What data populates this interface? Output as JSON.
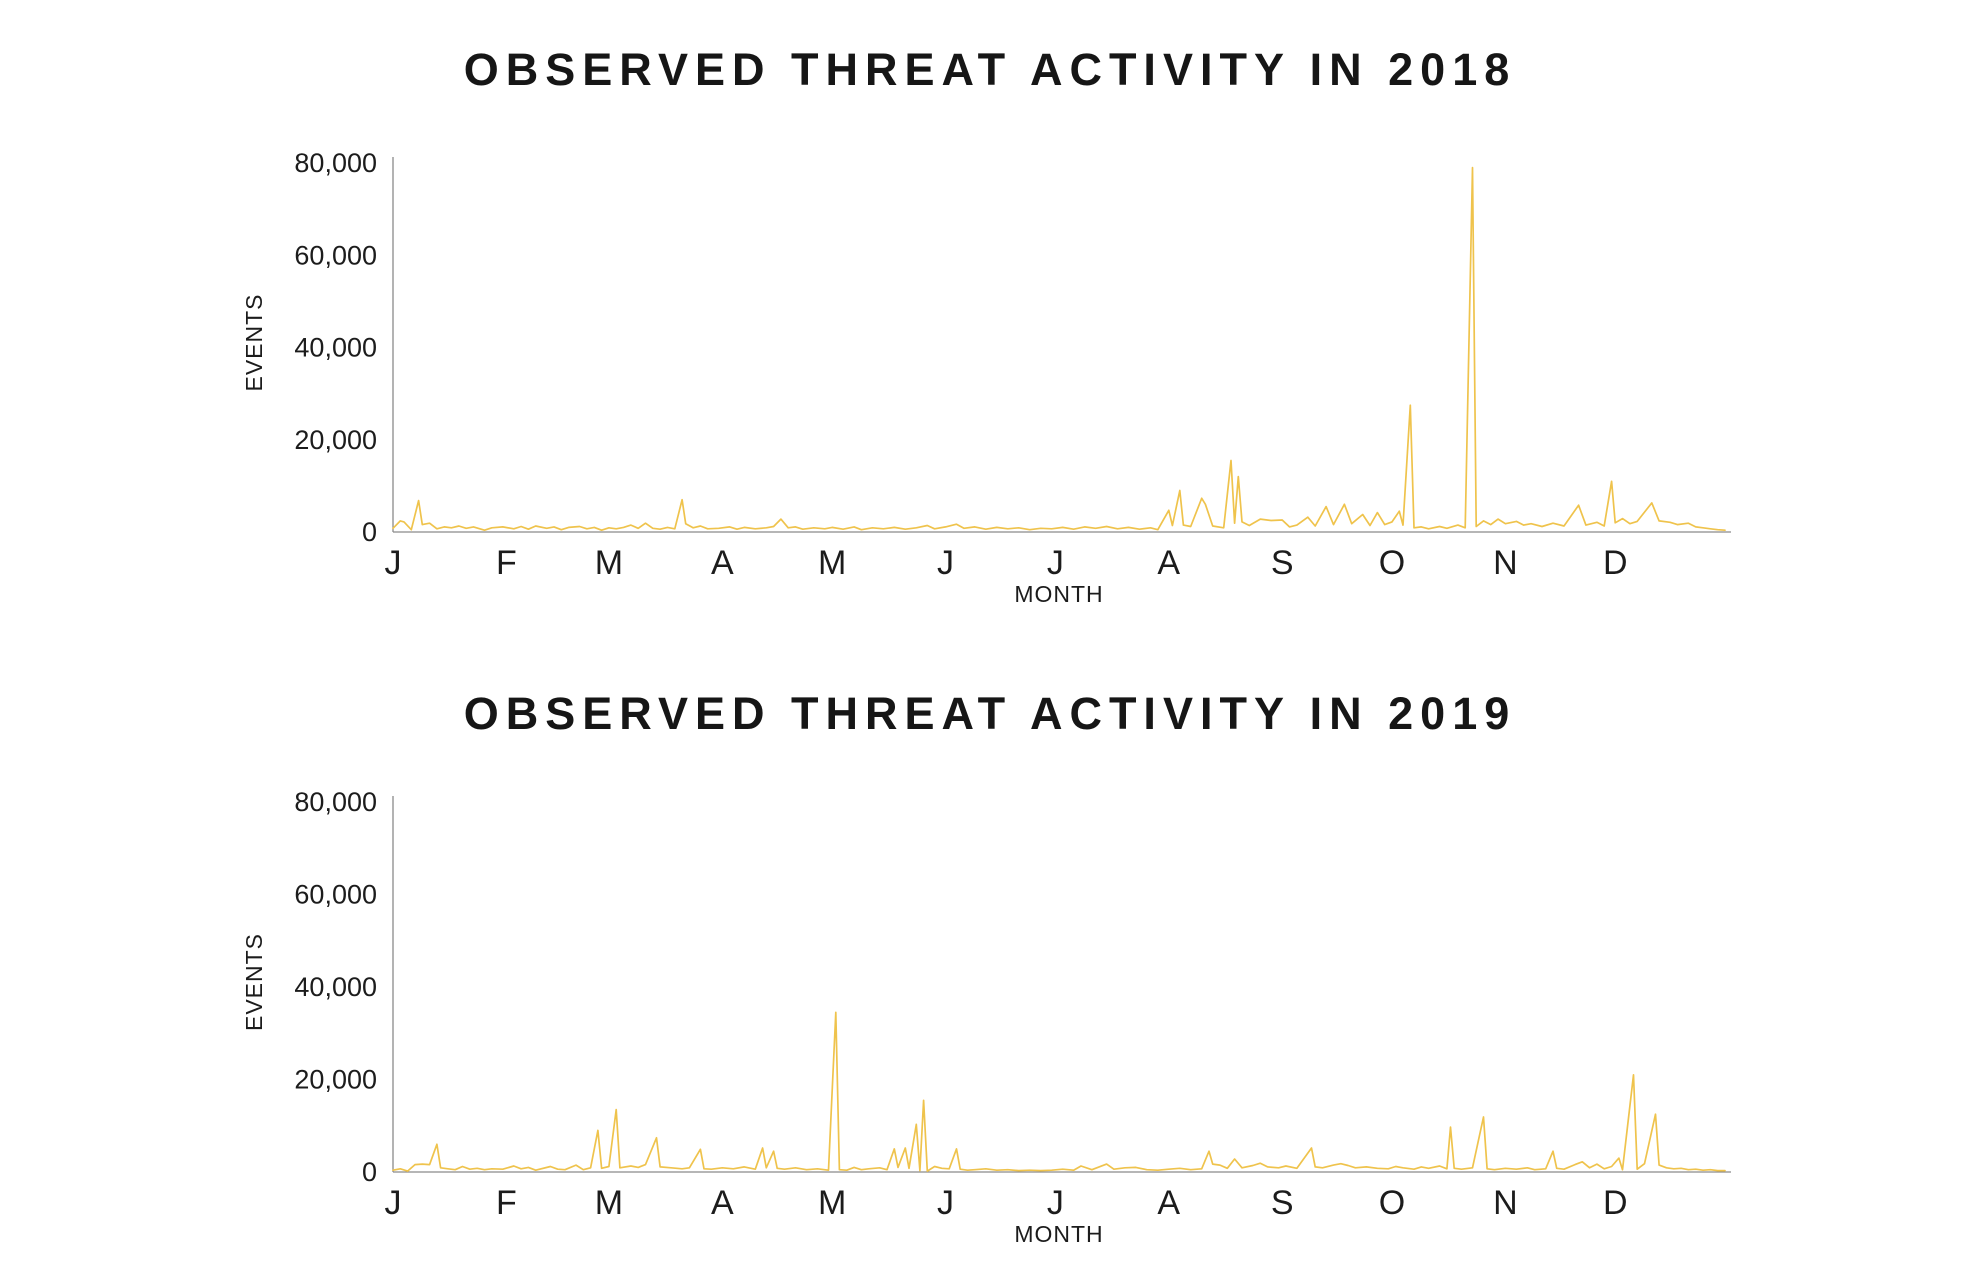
{
  "page": {
    "background": "#ffffff"
  },
  "style": {
    "line_color": "#EFC34C",
    "axis_color": "#8a8a8a",
    "text_color": "#1c1c1c"
  },
  "chart_data": [
    {
      "type": "line",
      "title": "OBSERVED THREAT ACTIVITY IN 2018",
      "xlabel": "MONTH",
      "ylabel": "EVENTS",
      "ylim": [
        0,
        80000
      ],
      "grid": false,
      "legend": "none",
      "y_tick_labels": [
        "0",
        "20,000",
        "40,000",
        "60,000",
        "80,000"
      ],
      "y_tick_values": [
        0,
        20000,
        40000,
        60000,
        80000
      ],
      "x_tick_labels": [
        "J",
        "F",
        "M",
        "A",
        "M",
        "J",
        "J",
        "A",
        "S",
        "O",
        "N",
        "D"
      ],
      "month_start_days": [
        0,
        31,
        59,
        90,
        120,
        151,
        181,
        212,
        243,
        273,
        304,
        334
      ],
      "x_unit": "day_of_year",
      "points": [
        [
          1,
          800
        ],
        [
          3,
          2400
        ],
        [
          4,
          2200
        ],
        [
          6,
          500
        ],
        [
          8,
          6800
        ],
        [
          9,
          1600
        ],
        [
          11,
          1900
        ],
        [
          13,
          700
        ],
        [
          15,
          1100
        ],
        [
          17,
          900
        ],
        [
          19,
          1300
        ],
        [
          21,
          800
        ],
        [
          23,
          1100
        ],
        [
          26,
          400
        ],
        [
          28,
          900
        ],
        [
          31,
          1100
        ],
        [
          34,
          700
        ],
        [
          36,
          1200
        ],
        [
          38,
          600
        ],
        [
          40,
          1300
        ],
        [
          43,
          800
        ],
        [
          45,
          1100
        ],
        [
          47,
          500
        ],
        [
          49,
          1000
        ],
        [
          52,
          1200
        ],
        [
          54,
          700
        ],
        [
          56,
          1000
        ],
        [
          58,
          400
        ],
        [
          60,
          900
        ],
        [
          62,
          700
        ],
        [
          64,
          1000
        ],
        [
          66,
          1500
        ],
        [
          68,
          800
        ],
        [
          70,
          1900
        ],
        [
          72,
          800
        ],
        [
          74,
          600
        ],
        [
          76,
          1000
        ],
        [
          78,
          700
        ],
        [
          80,
          7000
        ],
        [
          81,
          1800
        ],
        [
          83,
          900
        ],
        [
          85,
          1300
        ],
        [
          87,
          700
        ],
        [
          90,
          800
        ],
        [
          93,
          1100
        ],
        [
          95,
          600
        ],
        [
          97,
          1000
        ],
        [
          100,
          700
        ],
        [
          103,
          900
        ],
        [
          105,
          1200
        ],
        [
          107,
          2800
        ],
        [
          109,
          900
        ],
        [
          111,
          1100
        ],
        [
          113,
          600
        ],
        [
          116,
          900
        ],
        [
          119,
          700
        ],
        [
          121,
          1000
        ],
        [
          124,
          600
        ],
        [
          127,
          1100
        ],
        [
          129,
          500
        ],
        [
          132,
          900
        ],
        [
          135,
          700
        ],
        [
          138,
          1000
        ],
        [
          141,
          600
        ],
        [
          144,
          900
        ],
        [
          147,
          1400
        ],
        [
          149,
          700
        ],
        [
          152,
          1100
        ],
        [
          155,
          1700
        ],
        [
          157,
          800
        ],
        [
          160,
          1100
        ],
        [
          163,
          600
        ],
        [
          166,
          1000
        ],
        [
          169,
          700
        ],
        [
          172,
          900
        ],
        [
          175,
          500
        ],
        [
          178,
          800
        ],
        [
          181,
          700
        ],
        [
          184,
          1000
        ],
        [
          187,
          600
        ],
        [
          190,
          1100
        ],
        [
          193,
          800
        ],
        [
          196,
          1200
        ],
        [
          199,
          700
        ],
        [
          202,
          1000
        ],
        [
          205,
          600
        ],
        [
          208,
          900
        ],
        [
          210,
          500
        ],
        [
          213,
          4700
        ],
        [
          214,
          1400
        ],
        [
          216,
          9000
        ],
        [
          217,
          1500
        ],
        [
          219,
          1200
        ],
        [
          222,
          7300
        ],
        [
          223,
          6000
        ],
        [
          225,
          1300
        ],
        [
          228,
          900
        ],
        [
          230,
          15500
        ],
        [
          231,
          1900
        ],
        [
          232,
          12000
        ],
        [
          233,
          2200
        ],
        [
          235,
          1400
        ],
        [
          238,
          2800
        ],
        [
          241,
          2500
        ],
        [
          244,
          2600
        ],
        [
          246,
          1100
        ],
        [
          248,
          1500
        ],
        [
          251,
          3200
        ],
        [
          253,
          1300
        ],
        [
          256,
          5500
        ],
        [
          258,
          1600
        ],
        [
          261,
          6000
        ],
        [
          263,
          1800
        ],
        [
          266,
          3800
        ],
        [
          268,
          1400
        ],
        [
          270,
          4200
        ],
        [
          272,
          1600
        ],
        [
          274,
          2200
        ],
        [
          276,
          4500
        ],
        [
          277,
          1500
        ],
        [
          279,
          27500
        ],
        [
          280,
          900
        ],
        [
          282,
          1100
        ],
        [
          284,
          700
        ],
        [
          287,
          1200
        ],
        [
          289,
          800
        ],
        [
          292,
          1500
        ],
        [
          294,
          900
        ],
        [
          296,
          79000
        ],
        [
          297,
          1200
        ],
        [
          299,
          2400
        ],
        [
          301,
          1600
        ],
        [
          303,
          2800
        ],
        [
          305,
          1800
        ],
        [
          308,
          2300
        ],
        [
          310,
          1500
        ],
        [
          312,
          1800
        ],
        [
          315,
          1200
        ],
        [
          318,
          1900
        ],
        [
          321,
          1300
        ],
        [
          325,
          5800
        ],
        [
          327,
          1500
        ],
        [
          330,
          2100
        ],
        [
          332,
          1300
        ],
        [
          334,
          11000
        ],
        [
          335,
          2000
        ],
        [
          337,
          2900
        ],
        [
          339,
          1800
        ],
        [
          341,
          2300
        ],
        [
          345,
          6300
        ],
        [
          347,
          2400
        ],
        [
          350,
          2100
        ],
        [
          352,
          1600
        ],
        [
          355,
          1900
        ],
        [
          357,
          1100
        ],
        [
          359,
          900
        ],
        [
          361,
          700
        ],
        [
          363,
          500
        ],
        [
          365,
          400
        ]
      ]
    },
    {
      "type": "line",
      "title": "OBSERVED THREAT ACTIVITY IN 2019",
      "xlabel": "MONTH",
      "ylabel": "EVENTS",
      "ylim": [
        0,
        80000
      ],
      "grid": false,
      "legend": "none",
      "y_tick_labels": [
        "0",
        "20,000",
        "40,000",
        "60,000",
        "80,000"
      ],
      "y_tick_values": [
        0,
        20000,
        40000,
        60000,
        80000
      ],
      "x_tick_labels": [
        "J",
        "F",
        "M",
        "A",
        "M",
        "J",
        "J",
        "A",
        "S",
        "O",
        "N",
        "D"
      ],
      "month_start_days": [
        0,
        31,
        59,
        90,
        120,
        151,
        181,
        212,
        243,
        273,
        304,
        334
      ],
      "x_unit": "day_of_year",
      "points": [
        [
          1,
          400
        ],
        [
          3,
          700
        ],
        [
          5,
          200
        ],
        [
          7,
          1600
        ],
        [
          9,
          1700
        ],
        [
          11,
          1600
        ],
        [
          13,
          6000
        ],
        [
          14,
          900
        ],
        [
          16,
          700
        ],
        [
          18,
          500
        ],
        [
          20,
          1200
        ],
        [
          22,
          600
        ],
        [
          24,
          800
        ],
        [
          26,
          500
        ],
        [
          28,
          700
        ],
        [
          31,
          600
        ],
        [
          34,
          1300
        ],
        [
          36,
          700
        ],
        [
          38,
          1000
        ],
        [
          40,
          400
        ],
        [
          44,
          1200
        ],
        [
          46,
          600
        ],
        [
          48,
          500
        ],
        [
          51,
          1500
        ],
        [
          53,
          500
        ],
        [
          55,
          900
        ],
        [
          57,
          9000
        ],
        [
          58,
          800
        ],
        [
          60,
          1200
        ],
        [
          62,
          13500
        ],
        [
          63,
          900
        ],
        [
          66,
          1300
        ],
        [
          68,
          1000
        ],
        [
          70,
          1600
        ],
        [
          73,
          7400
        ],
        [
          74,
          1100
        ],
        [
          77,
          900
        ],
        [
          80,
          700
        ],
        [
          82,
          900
        ],
        [
          85,
          4900
        ],
        [
          86,
          700
        ],
        [
          88,
          600
        ],
        [
          91,
          900
        ],
        [
          94,
          700
        ],
        [
          97,
          1100
        ],
        [
          100,
          600
        ],
        [
          102,
          5200
        ],
        [
          103,
          900
        ],
        [
          105,
          4500
        ],
        [
          106,
          800
        ],
        [
          108,
          600
        ],
        [
          111,
          900
        ],
        [
          114,
          500
        ],
        [
          117,
          700
        ],
        [
          120,
          400
        ],
        [
          122,
          34500
        ],
        [
          123,
          500
        ],
        [
          125,
          400
        ],
        [
          127,
          1000
        ],
        [
          129,
          500
        ],
        [
          131,
          700
        ],
        [
          134,
          900
        ],
        [
          136,
          500
        ],
        [
          138,
          5000
        ],
        [
          139,
          1000
        ],
        [
          141,
          5200
        ],
        [
          142,
          800
        ],
        [
          144,
          10300
        ],
        [
          145,
          300
        ],
        [
          146,
          15500
        ],
        [
          147,
          200
        ],
        [
          149,
          1200
        ],
        [
          151,
          800
        ],
        [
          153,
          700
        ],
        [
          155,
          5000
        ],
        [
          156,
          600
        ],
        [
          158,
          400
        ],
        [
          160,
          500
        ],
        [
          163,
          700
        ],
        [
          166,
          400
        ],
        [
          169,
          500
        ],
        [
          172,
          300
        ],
        [
          175,
          400
        ],
        [
          178,
          300
        ],
        [
          181,
          400
        ],
        [
          184,
          600
        ],
        [
          187,
          400
        ],
        [
          189,
          1300
        ],
        [
          192,
          500
        ],
        [
          196,
          1700
        ],
        [
          198,
          600
        ],
        [
          201,
          900
        ],
        [
          204,
          1000
        ],
        [
          207,
          500
        ],
        [
          210,
          400
        ],
        [
          213,
          600
        ],
        [
          216,
          800
        ],
        [
          219,
          500
        ],
        [
          222,
          700
        ],
        [
          224,
          4500
        ],
        [
          225,
          1700
        ],
        [
          227,
          1500
        ],
        [
          229,
          800
        ],
        [
          231,
          2800
        ],
        [
          233,
          900
        ],
        [
          236,
          1400
        ],
        [
          238,
          1900
        ],
        [
          240,
          1100
        ],
        [
          243,
          900
        ],
        [
          245,
          1300
        ],
        [
          248,
          800
        ],
        [
          252,
          5200
        ],
        [
          253,
          1100
        ],
        [
          255,
          900
        ],
        [
          258,
          1500
        ],
        [
          260,
          1800
        ],
        [
          262,
          1400
        ],
        [
          264,
          900
        ],
        [
          267,
          1100
        ],
        [
          270,
          800
        ],
        [
          273,
          700
        ],
        [
          275,
          1200
        ],
        [
          277,
          900
        ],
        [
          280,
          600
        ],
        [
          282,
          1100
        ],
        [
          284,
          800
        ],
        [
          287,
          1300
        ],
        [
          289,
          700
        ],
        [
          290,
          9700
        ],
        [
          291,
          800
        ],
        [
          293,
          600
        ],
        [
          296,
          900
        ],
        [
          299,
          11900
        ],
        [
          300,
          700
        ],
        [
          302,
          500
        ],
        [
          305,
          800
        ],
        [
          308,
          600
        ],
        [
          311,
          900
        ],
        [
          313,
          500
        ],
        [
          316,
          700
        ],
        [
          318,
          4500
        ],
        [
          319,
          800
        ],
        [
          321,
          600
        ],
        [
          324,
          1600
        ],
        [
          326,
          2200
        ],
        [
          328,
          900
        ],
        [
          330,
          1700
        ],
        [
          332,
          700
        ],
        [
          334,
          1200
        ],
        [
          336,
          3000
        ],
        [
          337,
          500
        ],
        [
          340,
          21000
        ],
        [
          341,
          600
        ],
        [
          343,
          1800
        ],
        [
          346,
          12500
        ],
        [
          347,
          1500
        ],
        [
          349,
          900
        ],
        [
          351,
          700
        ],
        [
          353,
          800
        ],
        [
          355,
          500
        ],
        [
          357,
          600
        ],
        [
          359,
          400
        ],
        [
          361,
          500
        ],
        [
          363,
          300
        ],
        [
          365,
          300
        ]
      ]
    }
  ]
}
